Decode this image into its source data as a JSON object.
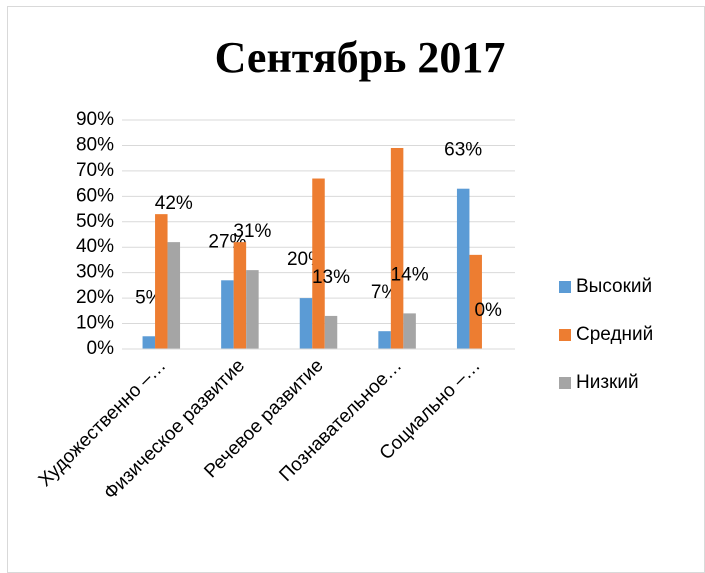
{
  "chart_data": {
    "type": "bar",
    "title": "Сентябрь 2017",
    "categories": [
      "Художественно –…",
      "Физическое развитие",
      "Речевое развитие",
      "Познавательное…",
      "Социально –…"
    ],
    "series": [
      {
        "name": "Высокий",
        "color": "#5b9bd5",
        "values": [
          5,
          27,
          20,
          7,
          63
        ],
        "value_labels": [
          "5%",
          "27%",
          "20%",
          "7%",
          "63%"
        ]
      },
      {
        "name": "Средний",
        "color": "#ed7d31",
        "values": [
          53,
          42,
          67,
          79,
          37
        ]
      },
      {
        "name": "Низкий",
        "color": "#a5a5a5",
        "values": [
          42,
          31,
          13,
          14,
          0
        ],
        "value_labels": [
          "42%",
          "31%",
          "13%",
          "14%",
          "0%"
        ]
      }
    ],
    "ylim": [
      0,
      90
    ],
    "yticks": [
      {
        "value": 0,
        "label": "0%"
      },
      {
        "value": 10,
        "label": "10%"
      },
      {
        "value": 20,
        "label": "20%"
      },
      {
        "value": 30,
        "label": "30%"
      },
      {
        "value": 40,
        "label": "40%"
      },
      {
        "value": 50,
        "label": "50%"
      },
      {
        "value": 60,
        "label": "60%"
      },
      {
        "value": 70,
        "label": "70%"
      },
      {
        "value": 80,
        "label": "80%"
      },
      {
        "value": 90,
        "label": "90%"
      }
    ],
    "grid": true,
    "legend": "right"
  }
}
